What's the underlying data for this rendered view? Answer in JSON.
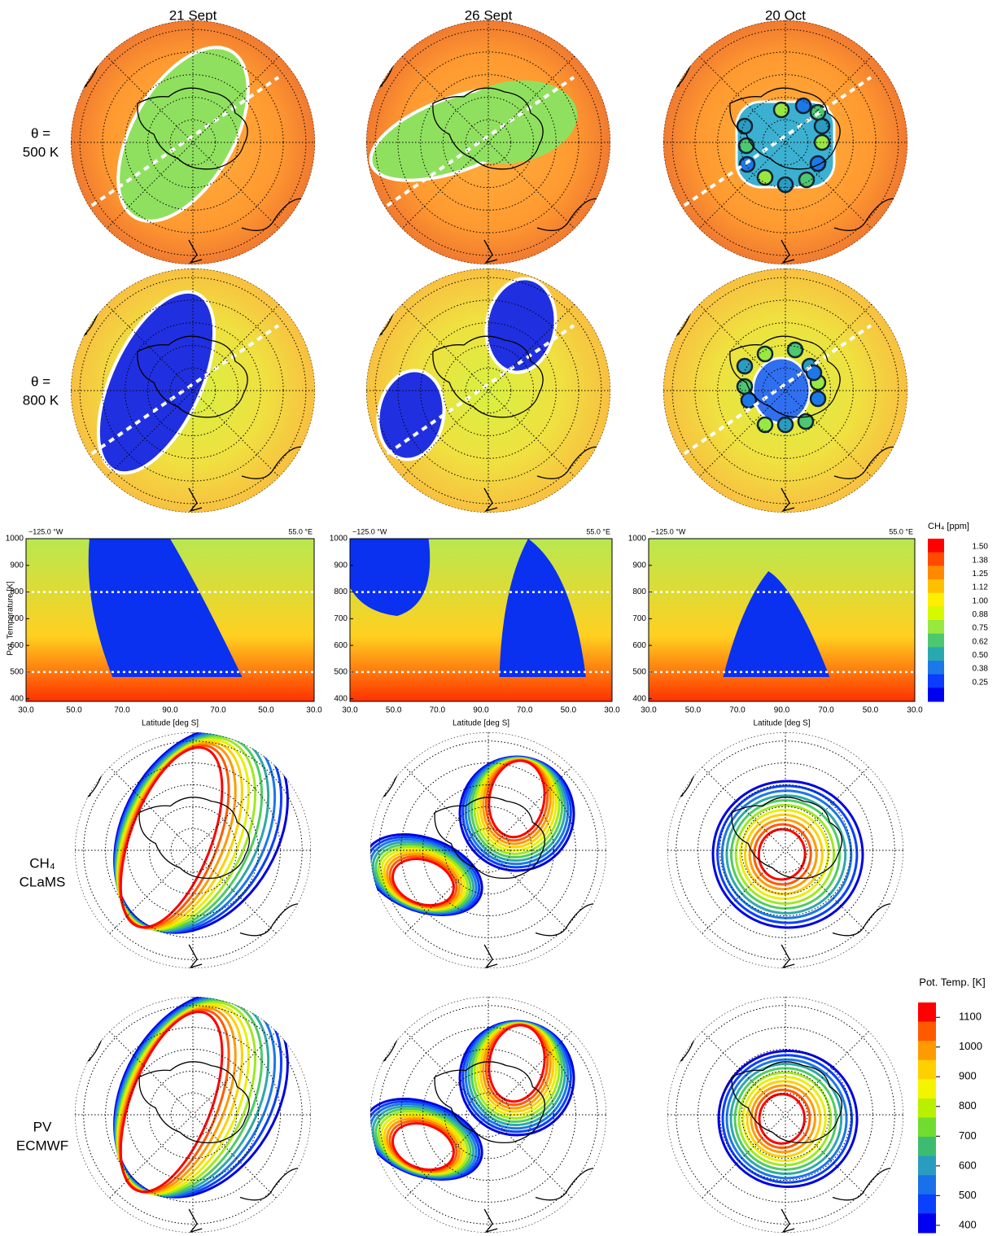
{
  "columns": [
    "21 Sept",
    "26 Sept",
    "20 Oct"
  ],
  "row_labels": [
    [
      "θ =",
      "500 K"
    ],
    [
      "θ =",
      "800 K"
    ],
    [
      "CH₄",
      "CLaMS"
    ],
    [
      "PV",
      "ECMWF"
    ]
  ],
  "cross_section": {
    "ylabel": "Pot. Temperature [K]",
    "xlabel": "Latitude [deg S]",
    "left_label": "−125.0 °W",
    "right_label": "55.0 °E",
    "ylim": [
      390,
      1000
    ],
    "yticks": [
      400,
      500,
      600,
      700,
      800,
      900,
      1000
    ],
    "xtick_labels": [
      "30.0",
      "50.0",
      "70.0",
      "90.0",
      "70.0",
      "50.0",
      "30.0"
    ],
    "reference_levels": [
      500,
      800
    ]
  },
  "ch4_colorbar": {
    "title": "CH₄ [ppm]",
    "ticks": [
      "1.50",
      "1.38",
      "1.25",
      "1.12",
      "1.00",
      "0.88",
      "0.75",
      "0.62",
      "0.50",
      "0.38",
      "0.25"
    ],
    "colors": [
      "#ff0000",
      "#ff4a00",
      "#ff8a00",
      "#ffc000",
      "#ffee00",
      "#d8f800",
      "#98e840",
      "#4cc870",
      "#2aa8b0",
      "#1c78e8",
      "#0c3cff",
      "#0000f0"
    ]
  },
  "theta_colorbar": {
    "title": "Pot. Temp. [K]",
    "lim": [
      1150,
      375
    ],
    "ticks": [
      1100,
      1000,
      900,
      800,
      700,
      600,
      500,
      400
    ],
    "colors": [
      "#ff0000",
      "#ff5a00",
      "#ff9a00",
      "#ffd000",
      "#f4f400",
      "#b8f000",
      "#70dc30",
      "#3cbc70",
      "#2a9cc0",
      "#1a70e8",
      "#0a40ff",
      "#0000f0"
    ]
  }
}
